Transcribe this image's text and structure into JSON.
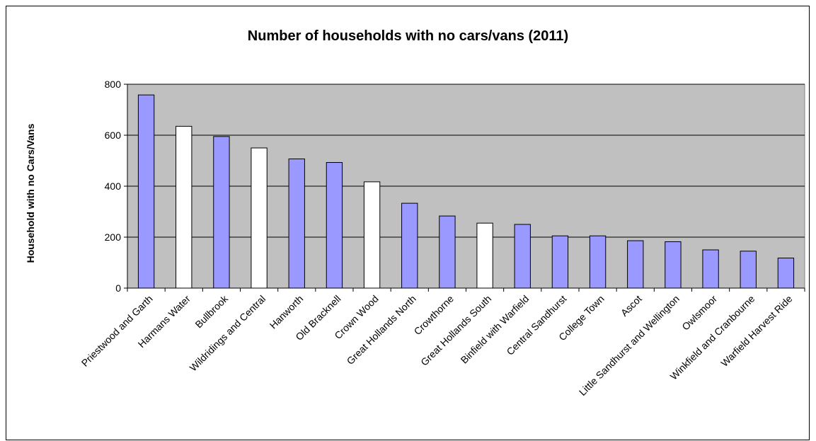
{
  "chart_data": {
    "type": "bar",
    "title": "Number of households with no cars/vans (2011)",
    "xlabel": "",
    "ylabel": "Household with no Cars/Vans",
    "ylim": [
      0,
      800
    ],
    "yticks": [
      "0",
      "200",
      "400",
      "600",
      "800"
    ],
    "grid": true,
    "legend": "none",
    "colors": {
      "plot_background": "#c0c0c0",
      "filled_bar": "#9999ff",
      "outlined_bar": "#ffffff",
      "gridline": "#000000"
    },
    "categories": [
      "Priestwood and Garth",
      "Harmans Water",
      "Bullbrook",
      "Wildridings and Central",
      "Hanworth",
      "Old Bracknell",
      "Crown Wood",
      "Great Hollands North",
      "Crowthorne",
      "Great Hollands South",
      "Binfield with Warfield",
      "Central Sandhurst",
      "College Town",
      "Ascot",
      "Little Sandhurst and Wellington",
      "Owlsmoor",
      "Winkfield and Cranbourne",
      "Warfield Harvest Ride"
    ],
    "values": [
      758,
      635,
      595,
      550,
      507,
      493,
      417,
      333,
      283,
      255,
      250,
      205,
      205,
      186,
      182,
      150,
      145,
      118
    ],
    "bar_fill": [
      "filled",
      "outline",
      "filled",
      "outline",
      "filled",
      "filled",
      "outline",
      "filled",
      "filled",
      "outline",
      "filled",
      "filled",
      "filled",
      "filled",
      "filled",
      "filled",
      "filled",
      "filled"
    ]
  }
}
